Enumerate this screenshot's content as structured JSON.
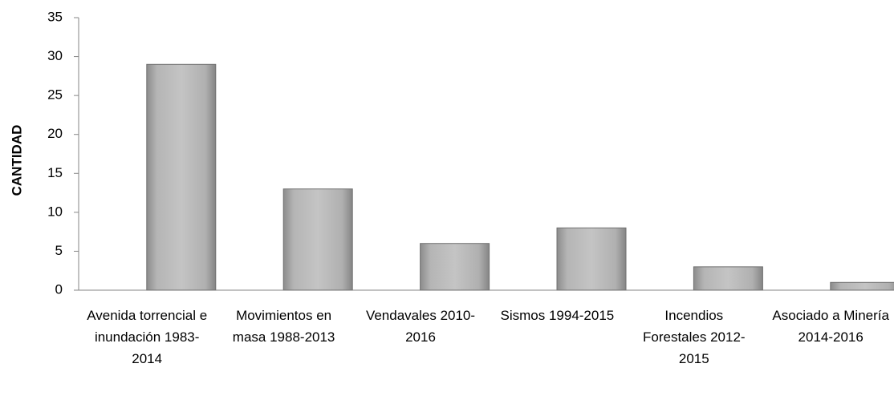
{
  "chart_data": {
    "type": "bar",
    "y_label": "CANTIDAD",
    "categories": [
      "Avenida torrencial e inundación 1983-2014",
      "Movimientos en masa 1988-2013",
      "Vendavales 2010-2016",
      "Sismos 1994-2015",
      "Incendios Forestales 2012-2015",
      "Asociado a Minería 2014-2016"
    ],
    "values": [
      29,
      13,
      6,
      8,
      3,
      1
    ],
    "color": "#a6a6a6",
    "ylim": [
      0,
      35
    ],
    "yticks": [
      0,
      5,
      10,
      15,
      20,
      25,
      30,
      35
    ],
    "grid": false
  }
}
